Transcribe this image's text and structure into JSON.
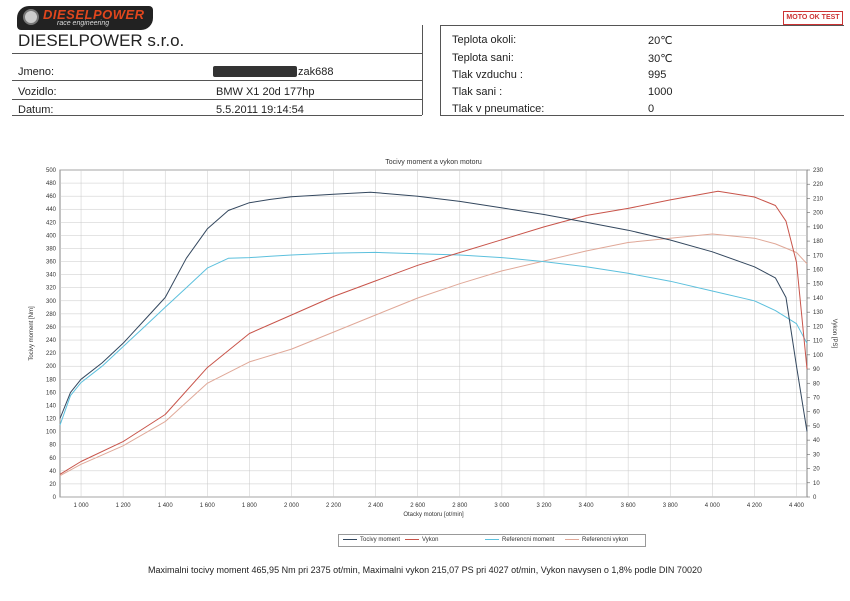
{
  "header": {
    "logo_brand": "DIESELPOWER",
    "logo_tagline": "race engineering",
    "company": "DIESELPOWER s.r.o.",
    "moto_logo": "MOTO OK TEST"
  },
  "fields": {
    "jmeno_label": "Jmeno:",
    "jmeno_value": "zak688",
    "vozidlo_label": "Vozidlo:",
    "vozidlo_value": "BMW X1 20d 177hp",
    "datum_label": "Datum:",
    "datum_value": "5.5.2011 19:14:54"
  },
  "conditions": {
    "teplota_okoli_label": "Teplota okoli:",
    "teplota_okoli_value": "20℃",
    "teplota_sani_label": "Teplota sani:",
    "teplota_sani_value": "30℃",
    "tlak_vzduchu_label": "Tlak vzduchu :",
    "tlak_vzduchu_value": "995",
    "tlak_sani_label": "Tlak sani :",
    "tlak_sani_value": "1000",
    "tlak_pneumatice_label": "Tlak v pneumatice:",
    "tlak_pneumatice_value": "0"
  },
  "chart_data": {
    "type": "line",
    "title": "Tocivy moment a vykon motoru",
    "xlabel": "Otacky motoru [ot/min]",
    "ylabel_left": "Tocivy moment [Nm]",
    "ylabel_right": "Vykon [PS]",
    "xlim": [
      900,
      4450
    ],
    "ylim_left": [
      0,
      500
    ],
    "ylim_right": [
      0,
      230
    ],
    "x_ticks": [
      1000,
      1200,
      1400,
      1600,
      1800,
      2000,
      2200,
      2400,
      2600,
      2800,
      3000,
      3200,
      3400,
      3600,
      3800,
      4000,
      4200,
      4400
    ],
    "x_tick_labels": [
      "1 000",
      "1 200",
      "1 400",
      "1 600",
      "1 800",
      "2 000",
      "2 200",
      "2 400",
      "2 600",
      "2 800",
      "3 000",
      "3 200",
      "3 400",
      "3 600",
      "3 800",
      "4 000",
      "4 200",
      "4 400"
    ],
    "y_left_ticks": [
      0,
      20,
      40,
      60,
      80,
      100,
      120,
      140,
      160,
      180,
      200,
      220,
      240,
      260,
      280,
      300,
      320,
      340,
      360,
      380,
      400,
      420,
      440,
      460,
      480,
      500
    ],
    "y_right_ticks": [
      0,
      10,
      20,
      30,
      40,
      50,
      60,
      70,
      80,
      90,
      100,
      110,
      120,
      130,
      140,
      150,
      160,
      170,
      180,
      190,
      200,
      210,
      220,
      230
    ],
    "grid": true,
    "series": [
      {
        "name": "Tocivy moment",
        "axis": "left",
        "color": "#33475e",
        "x": [
          900,
          950,
          1000,
          1100,
          1200,
          1300,
          1400,
          1500,
          1600,
          1700,
          1800,
          1900,
          2000,
          2200,
          2375,
          2600,
          2800,
          3000,
          3200,
          3400,
          3600,
          3800,
          4000,
          4200,
          4300,
          4350,
          4400,
          4450
        ],
        "y": [
          120,
          160,
          180,
          205,
          235,
          270,
          305,
          365,
          410,
          438,
          450,
          455,
          459,
          463,
          466,
          460,
          452,
          442,
          432,
          420,
          408,
          393,
          375,
          352,
          335,
          305,
          200,
          100
        ]
      },
      {
        "name": "Vykon",
        "axis": "right",
        "color": "#c8544a",
        "x": [
          900,
          1000,
          1200,
          1400,
          1600,
          1800,
          2000,
          2200,
          2400,
          2600,
          2800,
          3000,
          3200,
          3400,
          3600,
          3800,
          4027,
          4200,
          4300,
          4350,
          4400,
          4450
        ],
        "y": [
          16,
          25,
          39,
          58,
          91,
          115,
          128,
          141,
          152,
          163,
          172,
          181,
          190,
          198,
          203,
          209,
          215,
          211,
          205,
          194,
          165,
          90
        ]
      },
      {
        "name": "Referencni moment",
        "axis": "left",
        "color": "#5cc0dd",
        "x": [
          900,
          950,
          1000,
          1100,
          1200,
          1300,
          1400,
          1500,
          1600,
          1700,
          1800,
          1900,
          2000,
          2200,
          2400,
          2600,
          2800,
          3000,
          3200,
          3400,
          3600,
          3800,
          4000,
          4200,
          4300,
          4400,
          4450
        ],
        "y": [
          110,
          155,
          175,
          200,
          230,
          260,
          290,
          320,
          350,
          365,
          366,
          368,
          370,
          373,
          374,
          372,
          370,
          366,
          360,
          352,
          342,
          330,
          315,
          300,
          285,
          265,
          235
        ]
      },
      {
        "name": "Referencni vykon",
        "axis": "right",
        "color": "#e0a898",
        "x": [
          900,
          1000,
          1200,
          1400,
          1600,
          1800,
          2000,
          2200,
          2400,
          2600,
          2800,
          3000,
          3200,
          3400,
          3600,
          3800,
          4000,
          4200,
          4300,
          4400,
          4450
        ],
        "y": [
          15,
          23,
          36,
          53,
          80,
          95,
          104,
          116,
          128,
          140,
          150,
          159,
          166,
          173,
          179,
          182,
          185,
          182,
          178,
          172,
          164
        ]
      }
    ]
  },
  "legend": [
    "Tocivy moment",
    "Vykon",
    "Referencni moment",
    "Referencni vykon"
  ],
  "footer": "Maximalni tocivy moment 465,95 Nm pri 2375 ot/min,  Maximalni vykon 215,07 PS pri 4027 ot/min,  Vykon navysen o 1,8% podle DIN 70020"
}
